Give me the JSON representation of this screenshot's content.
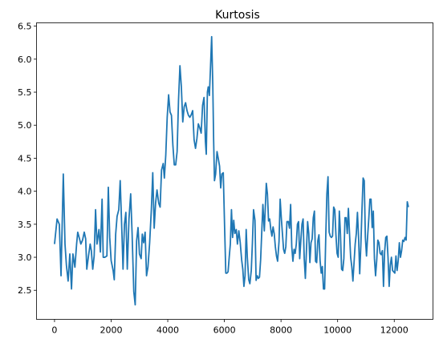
{
  "chart_data": {
    "type": "line",
    "title": "Kurtosis",
    "xlabel": "",
    "ylabel": "",
    "xlim": [
      -636,
      13368
    ],
    "ylim": [
      2.06,
      6.55
    ],
    "xticks": [
      0,
      2000,
      4000,
      6000,
      8000,
      10000,
      12000
    ],
    "yticks": [
      2.5,
      3.0,
      3.5,
      4.0,
      4.5,
      5.0,
      5.5,
      6.0,
      6.5
    ],
    "xtick_labels": [
      "0",
      "2000",
      "4000",
      "6000",
      "8000",
      "10000",
      "12000"
    ],
    "ytick_labels": [
      "2.5",
      "3.0",
      "3.5",
      "4.0",
      "4.5",
      "5.0",
      "5.5",
      "6.0",
      "6.5"
    ],
    "grid": false,
    "legend": "none",
    "series": [
      {
        "color": "#1f77b4",
        "points": [
          [
            0,
            3.2
          ],
          [
            90,
            3.58
          ],
          [
            170,
            3.5
          ],
          [
            230,
            2.72
          ],
          [
            310,
            4.26
          ],
          [
            370,
            3.2
          ],
          [
            420,
            2.88
          ],
          [
            480,
            2.64
          ],
          [
            540,
            3.05
          ],
          [
            600,
            2.52
          ],
          [
            650,
            3.05
          ],
          [
            720,
            2.85
          ],
          [
            780,
            3.2
          ],
          [
            820,
            3.38
          ],
          [
            870,
            3.3
          ],
          [
            930,
            3.2
          ],
          [
            990,
            3.26
          ],
          [
            1050,
            3.38
          ],
          [
            1100,
            3.28
          ],
          [
            1140,
            2.82
          ],
          [
            1200,
            3.02
          ],
          [
            1260,
            3.2
          ],
          [
            1300,
            3.1
          ],
          [
            1350,
            2.82
          ],
          [
            1400,
            3.02
          ],
          [
            1450,
            3.72
          ],
          [
            1500,
            3.2
          ],
          [
            1570,
            3.42
          ],
          [
            1620,
            3.08
          ],
          [
            1680,
            3.88
          ],
          [
            1720,
            3.0
          ],
          [
            1780,
            3.0
          ],
          [
            1850,
            3.02
          ],
          [
            1900,
            4.06
          ],
          [
            1950,
            3.3
          ],
          [
            2000,
            2.95
          ],
          [
            2070,
            2.8
          ],
          [
            2110,
            2.66
          ],
          [
            2160,
            3.35
          ],
          [
            2210,
            3.62
          ],
          [
            2270,
            3.72
          ],
          [
            2320,
            4.16
          ],
          [
            2380,
            3.38
          ],
          [
            2420,
            2.82
          ],
          [
            2470,
            3.5
          ],
          [
            2520,
            3.68
          ],
          [
            2570,
            2.82
          ],
          [
            2630,
            3.58
          ],
          [
            2690,
            3.96
          ],
          [
            2740,
            3.36
          ],
          [
            2800,
            2.48
          ],
          [
            2850,
            2.28
          ],
          [
            2900,
            3.25
          ],
          [
            2950,
            3.45
          ],
          [
            3000,
            3.05
          ],
          [
            3060,
            2.98
          ],
          [
            3100,
            3.35
          ],
          [
            3150,
            3.22
          ],
          [
            3200,
            3.38
          ],
          [
            3250,
            2.72
          ],
          [
            3300,
            2.85
          ],
          [
            3360,
            3.22
          ],
          [
            3420,
            3.72
          ],
          [
            3470,
            4.28
          ],
          [
            3520,
            3.44
          ],
          [
            3570,
            3.82
          ],
          [
            3620,
            4.02
          ],
          [
            3680,
            3.82
          ],
          [
            3730,
            3.76
          ],
          [
            3780,
            4.32
          ],
          [
            3840,
            4.42
          ],
          [
            3880,
            4.2
          ],
          [
            3930,
            4.55
          ],
          [
            3980,
            5.12
          ],
          [
            4030,
            5.46
          ],
          [
            4080,
            5.2
          ],
          [
            4130,
            5.15
          ],
          [
            4180,
            4.7
          ],
          [
            4230,
            4.4
          ],
          [
            4280,
            4.4
          ],
          [
            4330,
            4.6
          ],
          [
            4380,
            5.38
          ],
          [
            4430,
            5.9
          ],
          [
            4480,
            5.58
          ],
          [
            4530,
            5.05
          ],
          [
            4580,
            5.28
          ],
          [
            4630,
            5.34
          ],
          [
            4680,
            5.22
          ],
          [
            4730,
            5.15
          ],
          [
            4780,
            5.12
          ],
          [
            4830,
            5.16
          ],
          [
            4880,
            5.22
          ],
          [
            4930,
            4.78
          ],
          [
            4980,
            4.65
          ],
          [
            5030,
            4.8
          ],
          [
            5080,
            5.02
          ],
          [
            5130,
            4.96
          ],
          [
            5180,
            4.88
          ],
          [
            5230,
            5.3
          ],
          [
            5280,
            5.42
          ],
          [
            5330,
            4.75
          ],
          [
            5360,
            4.56
          ],
          [
            5400,
            5.5
          ],
          [
            5430,
            5.58
          ],
          [
            5470,
            5.45
          ],
          [
            5510,
            5.88
          ],
          [
            5550,
            6.34
          ],
          [
            5590,
            5.62
          ],
          [
            5620,
            4.78
          ],
          [
            5650,
            4.16
          ],
          [
            5690,
            4.26
          ],
          [
            5740,
            4.6
          ],
          [
            5790,
            4.48
          ],
          [
            5830,
            4.38
          ],
          [
            5870,
            4.05
          ],
          [
            5910,
            4.26
          ],
          [
            5960,
            4.28
          ],
          [
            6010,
            3.42
          ],
          [
            6050,
            2.76
          ],
          [
            6090,
            2.76
          ],
          [
            6130,
            2.78
          ],
          [
            6170,
            3.0
          ],
          [
            6210,
            3.2
          ],
          [
            6250,
            3.72
          ],
          [
            6290,
            3.3
          ],
          [
            6330,
            3.56
          ],
          [
            6370,
            3.36
          ],
          [
            6420,
            3.42
          ],
          [
            6460,
            3.2
          ],
          [
            6510,
            3.4
          ],
          [
            6560,
            3.22
          ],
          [
            6610,
            2.96
          ],
          [
            6650,
            2.82
          ],
          [
            6690,
            2.56
          ],
          [
            6730,
            2.72
          ],
          [
            6770,
            3.42
          ],
          [
            6810,
            3.0
          ],
          [
            6860,
            2.66
          ],
          [
            6900,
            2.6
          ],
          [
            6950,
            2.8
          ],
          [
            6990,
            3.22
          ],
          [
            7030,
            3.72
          ],
          [
            7080,
            3.56
          ],
          [
            7120,
            2.65
          ],
          [
            7160,
            2.72
          ],
          [
            7200,
            2.68
          ],
          [
            7240,
            2.7
          ],
          [
            7280,
            2.96
          ],
          [
            7320,
            3.38
          ],
          [
            7360,
            3.8
          ],
          [
            7410,
            3.4
          ],
          [
            7450,
            3.8
          ],
          [
            7480,
            4.12
          ],
          [
            7520,
            3.96
          ],
          [
            7560,
            3.55
          ],
          [
            7600,
            3.58
          ],
          [
            7640,
            3.42
          ],
          [
            7680,
            3.32
          ],
          [
            7720,
            3.46
          ],
          [
            7760,
            3.36
          ],
          [
            7800,
            3.16
          ],
          [
            7840,
            3.02
          ],
          [
            7880,
            2.94
          ],
          [
            7930,
            3.24
          ],
          [
            7970,
            3.88
          ],
          [
            8010,
            3.6
          ],
          [
            8050,
            3.36
          ],
          [
            8090,
            3.12
          ],
          [
            8130,
            3.06
          ],
          [
            8170,
            3.16
          ],
          [
            8210,
            3.54
          ],
          [
            8260,
            3.54
          ],
          [
            8300,
            3.44
          ],
          [
            8340,
            3.8
          ],
          [
            8380,
            3.16
          ],
          [
            8420,
            2.94
          ],
          [
            8460,
            3.12
          ],
          [
            8500,
            3.06
          ],
          [
            8540,
            3.2
          ],
          [
            8580,
            3.5
          ],
          [
            8620,
            3.54
          ],
          [
            8660,
            2.98
          ],
          [
            8700,
            3.25
          ],
          [
            8740,
            3.5
          ],
          [
            8780,
            3.58
          ],
          [
            8820,
            2.98
          ],
          [
            8860,
            2.68
          ],
          [
            8900,
            3.12
          ],
          [
            8940,
            3.54
          ],
          [
            8980,
            3.36
          ],
          [
            9020,
            2.92
          ],
          [
            9060,
            3.22
          ],
          [
            9100,
            3.28
          ],
          [
            9140,
            3.6
          ],
          [
            9180,
            3.7
          ],
          [
            9220,
            2.94
          ],
          [
            9260,
            2.92
          ],
          [
            9300,
            3.25
          ],
          [
            9340,
            3.34
          ],
          [
            9380,
            2.95
          ],
          [
            9420,
            2.76
          ],
          [
            9460,
            2.86
          ],
          [
            9500,
            2.52
          ],
          [
            9540,
            2.52
          ],
          [
            9580,
            3.3
          ],
          [
            9620,
            3.96
          ],
          [
            9660,
            4.22
          ],
          [
            9700,
            3.38
          ],
          [
            9740,
            3.32
          ],
          [
            9780,
            3.3
          ],
          [
            9820,
            3.32
          ],
          [
            9860,
            3.76
          ],
          [
            9900,
            3.72
          ],
          [
            9940,
            3.34
          ],
          [
            9980,
            3.06
          ],
          [
            10020,
            3.0
          ],
          [
            10060,
            3.7
          ],
          [
            10100,
            3.35
          ],
          [
            10140,
            2.82
          ],
          [
            10180,
            2.8
          ],
          [
            10220,
            2.98
          ],
          [
            10260,
            3.6
          ],
          [
            10300,
            3.6
          ],
          [
            10340,
            3.36
          ],
          [
            10380,
            3.74
          ],
          [
            10420,
            3.36
          ],
          [
            10460,
            3.0
          ],
          [
            10500,
            2.86
          ],
          [
            10540,
            2.64
          ],
          [
            10580,
            2.92
          ],
          [
            10620,
            3.2
          ],
          [
            10660,
            3.36
          ],
          [
            10700,
            3.68
          ],
          [
            10740,
            3.3
          ],
          [
            10780,
            2.75
          ],
          [
            10820,
            3.18
          ],
          [
            10860,
            3.72
          ],
          [
            10900,
            4.2
          ],
          [
            10940,
            4.16
          ],
          [
            10980,
            3.3
          ],
          [
            11020,
            3.02
          ],
          [
            11060,
            3.32
          ],
          [
            11100,
            3.58
          ],
          [
            11140,
            3.88
          ],
          [
            11180,
            3.88
          ],
          [
            11220,
            3.45
          ],
          [
            11260,
            3.7
          ],
          [
            11300,
            2.98
          ],
          [
            11340,
            2.72
          ],
          [
            11380,
            2.95
          ],
          [
            11420,
            3.26
          ],
          [
            11460,
            3.22
          ],
          [
            11500,
            3.06
          ],
          [
            11540,
            3.04
          ],
          [
            11580,
            3.1
          ],
          [
            11620,
            2.56
          ],
          [
            11660,
            3.08
          ],
          [
            11700,
            3.3
          ],
          [
            11740,
            3.32
          ],
          [
            11780,
            3.0
          ],
          [
            11820,
            2.56
          ],
          [
            11860,
            2.88
          ],
          [
            11900,
            3.0
          ],
          [
            11940,
            2.8
          ],
          [
            11980,
            2.78
          ],
          [
            12020,
            2.76
          ],
          [
            12060,
            3.02
          ],
          [
            12100,
            2.8
          ],
          [
            12140,
            2.95
          ],
          [
            12180,
            3.22
          ],
          [
            12220,
            3.0
          ],
          [
            12260,
            3.1
          ],
          [
            12300,
            3.26
          ],
          [
            12340,
            3.24
          ],
          [
            12380,
            3.3
          ],
          [
            12420,
            3.26
          ],
          [
            12460,
            3.84
          ],
          [
            12500,
            3.76
          ]
        ]
      }
    ]
  }
}
